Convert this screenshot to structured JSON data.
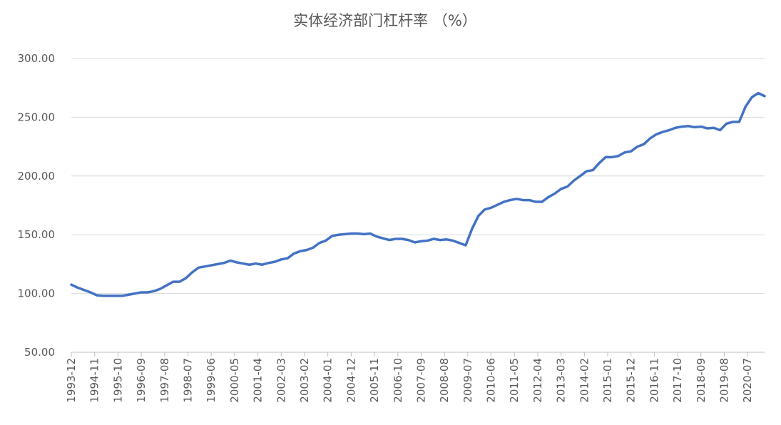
{
  "chart_data": {
    "type": "line",
    "title": "实体经济部门杠杆率 （%）",
    "x": [
      "1993-12",
      "1994-03",
      "1994-06",
      "1994-09",
      "1994-12",
      "1995-03",
      "1995-06",
      "1995-09",
      "1995-12",
      "1996-03",
      "1996-06",
      "1996-09",
      "1996-12",
      "1997-03",
      "1997-06",
      "1997-09",
      "1997-12",
      "1998-03",
      "1998-06",
      "1998-09",
      "1998-12",
      "1999-03",
      "1999-06",
      "1999-09",
      "1999-12",
      "2000-03",
      "2000-06",
      "2000-09",
      "2000-12",
      "2001-03",
      "2001-06",
      "2001-09",
      "2001-12",
      "2002-03",
      "2002-06",
      "2002-09",
      "2002-12",
      "2003-03",
      "2003-06",
      "2003-09",
      "2003-12",
      "2004-03",
      "2004-06",
      "2004-09",
      "2004-12",
      "2005-03",
      "2005-06",
      "2005-09",
      "2005-12",
      "2006-03",
      "2006-06",
      "2006-09",
      "2006-12",
      "2007-03",
      "2007-06",
      "2007-09",
      "2007-12",
      "2008-03",
      "2008-06",
      "2008-09",
      "2008-12",
      "2009-03",
      "2009-06",
      "2009-09",
      "2009-12",
      "2010-03",
      "2010-06",
      "2010-09",
      "2010-12",
      "2011-03",
      "2011-06",
      "2011-09",
      "2011-12",
      "2012-03",
      "2012-06",
      "2012-09",
      "2012-12",
      "2013-03",
      "2013-06",
      "2013-09",
      "2013-12",
      "2014-03",
      "2014-06",
      "2014-09",
      "2014-12",
      "2015-03",
      "2015-06",
      "2015-09",
      "2015-12",
      "2016-03",
      "2016-06",
      "2016-09",
      "2016-12",
      "2017-03",
      "2017-06",
      "2017-09",
      "2017-12",
      "2018-03",
      "2018-06",
      "2018-09",
      "2018-12",
      "2019-03",
      "2019-06",
      "2019-09",
      "2019-12",
      "2020-03",
      "2020-06",
      "2020-09",
      "2020-12",
      "2021-03"
    ],
    "series": [
      {
        "name": "实体经济部门杠杆率",
        "color": "#4472c4",
        "values": [
          107.5,
          105,
          103,
          101,
          98.5,
          98,
          98,
          98,
          98,
          99,
          100,
          101,
          101,
          102,
          104,
          107,
          110,
          110,
          113,
          118,
          122,
          123,
          124,
          125,
          126,
          128,
          126.5,
          125.5,
          124.5,
          125.5,
          124.5,
          126,
          127,
          129,
          130,
          134,
          136,
          137,
          139,
          143,
          145,
          149,
          150,
          150.5,
          151,
          151,
          150.5,
          151,
          148.5,
          147,
          145.5,
          146.5,
          146.5,
          145.5,
          143.5,
          144.5,
          145,
          146.5,
          145.5,
          146,
          145,
          143,
          141,
          155,
          166,
          171.5,
          173,
          175.5,
          178,
          179.5,
          180.5,
          179.5,
          179.5,
          178,
          178,
          182,
          185,
          189,
          191,
          196,
          200,
          204,
          205,
          211,
          216,
          216,
          217,
          220,
          221,
          225,
          227,
          232,
          235.5,
          237.5,
          239,
          241,
          242,
          242.5,
          241.5,
          242,
          240.5,
          241,
          239,
          244.5,
          246,
          246,
          259,
          267,
          270.5,
          268
        ]
      }
    ],
    "xlim": [
      "1993-12",
      "2021-03"
    ],
    "xticks": [
      "1993-12",
      "1994-11",
      "1995-10",
      "1996-09",
      "1997-08",
      "1998-07",
      "1999-06",
      "2000-05",
      "2001-04",
      "2002-03",
      "2003-02",
      "2004-01",
      "2004-12",
      "2005-11",
      "2006-10",
      "2007-09",
      "2008-08",
      "2009-07",
      "2010-06",
      "2011-05",
      "2012-04",
      "2013-03",
      "2014-02",
      "2015-01",
      "2015-12",
      "2016-11",
      "2017-10",
      "2018-09",
      "2019-08",
      "2020-07"
    ],
    "ylim": [
      50,
      300
    ],
    "yticks": [
      {
        "value": 50,
        "label": "50.00"
      },
      {
        "value": 100,
        "label": "100.00"
      },
      {
        "value": 150,
        "label": "150.00"
      },
      {
        "value": 200,
        "label": "200.00"
      },
      {
        "value": 250,
        "label": "250.00"
      },
      {
        "value": 300,
        "label": "300.00"
      }
    ],
    "grid": true
  }
}
